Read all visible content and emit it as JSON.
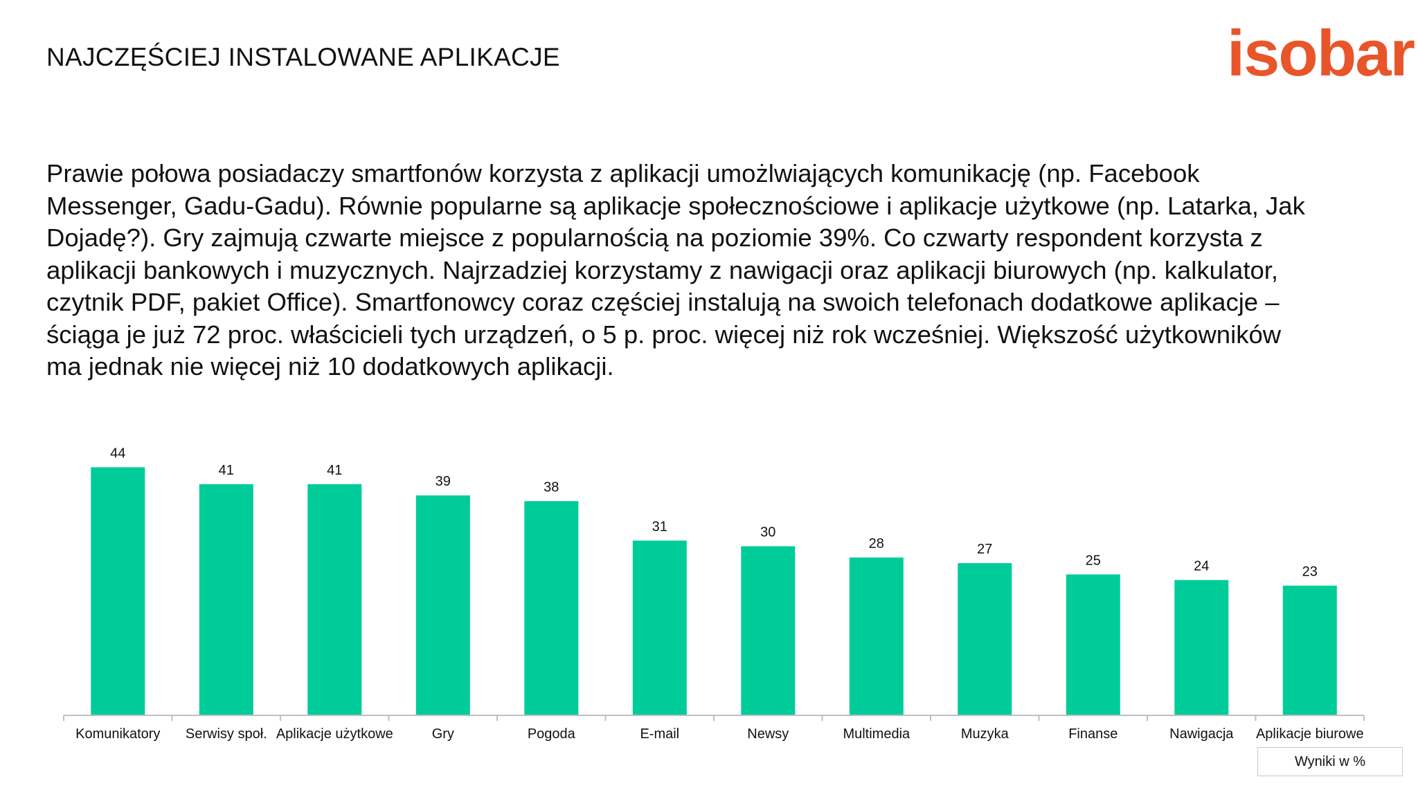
{
  "header": {
    "title": "NAJCZĘŚCIEJ INSTALOWANE APLIKACJE",
    "logo_text": "isobar"
  },
  "intro": {
    "lines": [
      "Prawie połowa posiadaczy smartfonów korzysta z aplikacji umożlwiających komunikację (np. Facebook",
      "Messenger, Gadu-Gadu). Równie popularne są aplikacje społecznościowe i aplikacje użytkowe (np. Latarka, Jak",
      "Dojadę?). Gry zajmują czwarte miejsce z popularnością na poziomie 39%. Co czwarty respondent korzysta z",
      "aplikacji bankowych i muzycznych. Najrzadziej korzystamy z nawigacji oraz aplikacji biurowych (np. kalkulator,",
      "czytnik PDF, pakiet Office).  Smartfonowcy coraz częściej instalują na swoich telefonach dodatkowe aplikacje –",
      "ściąga je już 72 proc. właścicieli tych urządzeń, o 5 p. proc. więcej niż rok wcześniej. Większość użytkowników",
      "ma jednak nie więcej niż 10 dodatkowych  aplikacji."
    ]
  },
  "note": "Wyniki w %",
  "colors": {
    "bar": "#00cc99",
    "axis": "#bfbfbf",
    "logo": "#e8552a"
  },
  "chart_data": {
    "type": "bar",
    "title": "",
    "xlabel": "",
    "ylabel": "",
    "ylim": [
      0,
      44
    ],
    "grid": false,
    "categories": [
      "Komunikatory",
      "Serwisy społ.",
      "Aplikacje użytkowe",
      "Gry",
      "Pogoda",
      "E-mail",
      "Newsy",
      "Multimedia",
      "Muzyka",
      "Finanse",
      "Nawigacja",
      "Aplikacje biurowe"
    ],
    "values": [
      44,
      41,
      41,
      39,
      38,
      31,
      30,
      28,
      27,
      25,
      24,
      23
    ],
    "data_labels": true
  }
}
